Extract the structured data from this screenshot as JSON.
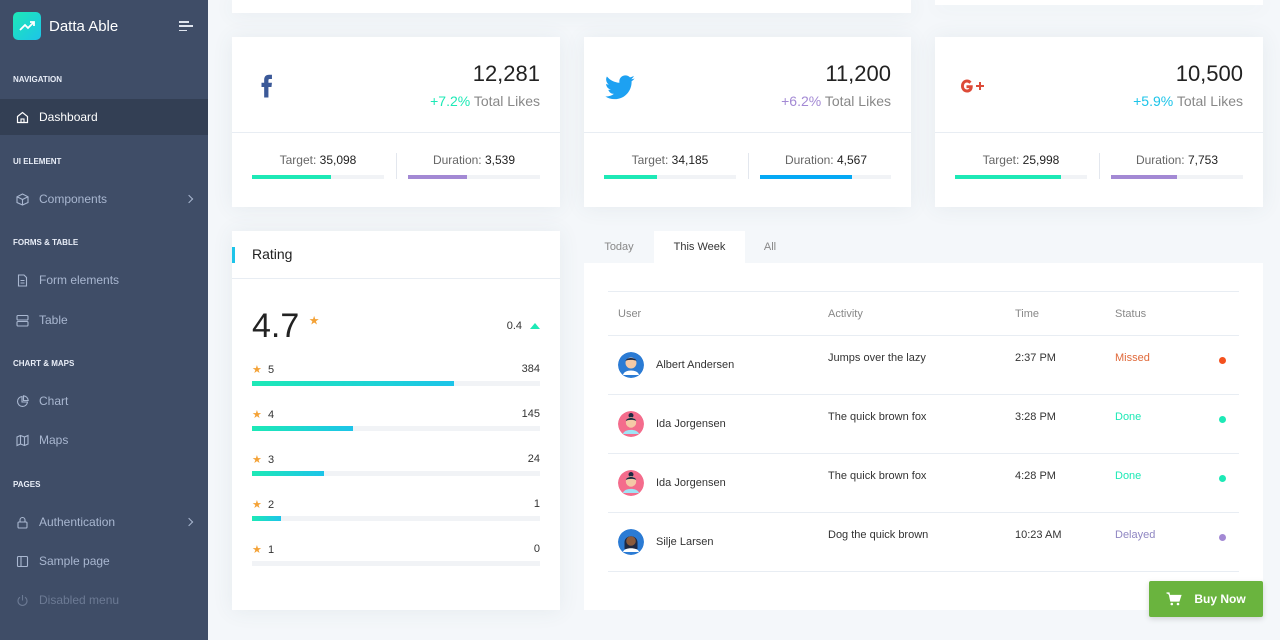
{
  "brand": {
    "name": "Datta Able"
  },
  "sidebar": {
    "captions": [
      "NAVIGATION",
      "UI ELEMENT",
      "FORMS & TABLE",
      "CHART & MAPS",
      "PAGES"
    ],
    "items": [
      {
        "label": "Dashboard",
        "icon": "home-icon"
      },
      {
        "label": "Components",
        "icon": "box-icon"
      },
      {
        "label": "Form elements",
        "icon": "file-text-icon"
      },
      {
        "label": "Table",
        "icon": "server-icon"
      },
      {
        "label": "Chart",
        "icon": "pie-chart-icon"
      },
      {
        "label": "Maps",
        "icon": "map-icon"
      },
      {
        "label": "Authentication",
        "icon": "lock-icon"
      },
      {
        "label": "Sample page",
        "icon": "sidebar-icon"
      },
      {
        "label": "Disabled menu",
        "icon": "power-icon"
      }
    ]
  },
  "social": [
    {
      "network": "facebook",
      "total": "12,281",
      "change": "+7.2%",
      "change_label": "Total Likes",
      "change_color": "#1de9b6",
      "target_label": "Target:",
      "target": "35,098",
      "duration_label": "Duration:",
      "duration": "3,539",
      "target_pct": 60,
      "duration_pct": 45,
      "target_color": "#1de9b6",
      "duration_color": "#a389d4"
    },
    {
      "network": "twitter",
      "total": "11,200",
      "change": "+6.2%",
      "change_label": "Total Likes",
      "change_color": "#a389d4",
      "target_label": "Target:",
      "target": "34,185",
      "duration_label": "Duration:",
      "duration": "4,567",
      "target_pct": 40,
      "duration_pct": 70,
      "target_color": "#1de9b6",
      "duration_color": "#04a9f5"
    },
    {
      "network": "googleplus",
      "total": "10,500",
      "change": "+5.9%",
      "change_label": "Total Likes",
      "change_color": "#1dc4e9",
      "target_label": "Target:",
      "target": "25,998",
      "duration_label": "Duration:",
      "duration": "7,753",
      "target_pct": 80,
      "duration_pct": 50,
      "target_color": "#1de9b6",
      "duration_color": "#a389d4"
    }
  ],
  "rating": {
    "title": "Rating",
    "average": "4.7",
    "delta": "0.4",
    "rows": [
      {
        "stars": "5",
        "count": "384",
        "pct": 70
      },
      {
        "stars": "4",
        "count": "145",
        "pct": 35
      },
      {
        "stars": "3",
        "count": "24",
        "pct": 25
      },
      {
        "stars": "2",
        "count": "1",
        "pct": 10
      },
      {
        "stars": "1",
        "count": "0",
        "pct": 0
      }
    ]
  },
  "tabs": [
    "Today",
    "This Week",
    "All"
  ],
  "activity": {
    "headers": [
      "User",
      "Activity",
      "Time",
      "Status"
    ],
    "rows": [
      {
        "user": "Albert Andersen",
        "activity": "Jumps over the lazy",
        "time": "2:37 PM",
        "status": "Missed",
        "status_color": "#f44236",
        "dot_color": "#f4511e",
        "avatar_color": "#2b7bd4"
      },
      {
        "user": "Ida Jorgensen",
        "activity": "The quick brown fox",
        "time": "3:28 PM",
        "status": "Done",
        "status_color": "#1de9b6",
        "dot_color": "#1de9b6",
        "avatar_color": "#f46c8c"
      },
      {
        "user": "Ida Jorgensen",
        "activity": "The quick brown fox",
        "time": "4:28 PM",
        "status": "Done",
        "status_color": "#1de9b6",
        "dot_color": "#1de9b6",
        "avatar_color": "#f46c8c"
      },
      {
        "user": "Silje Larsen",
        "activity": "Dog the quick brown",
        "time": "10:23 AM",
        "status": "Delayed",
        "status_color": "#a389d4",
        "dot_color": "#a389d4",
        "avatar_color": "#2b7bd4"
      }
    ]
  },
  "buy_button": {
    "label": "Buy Now"
  }
}
